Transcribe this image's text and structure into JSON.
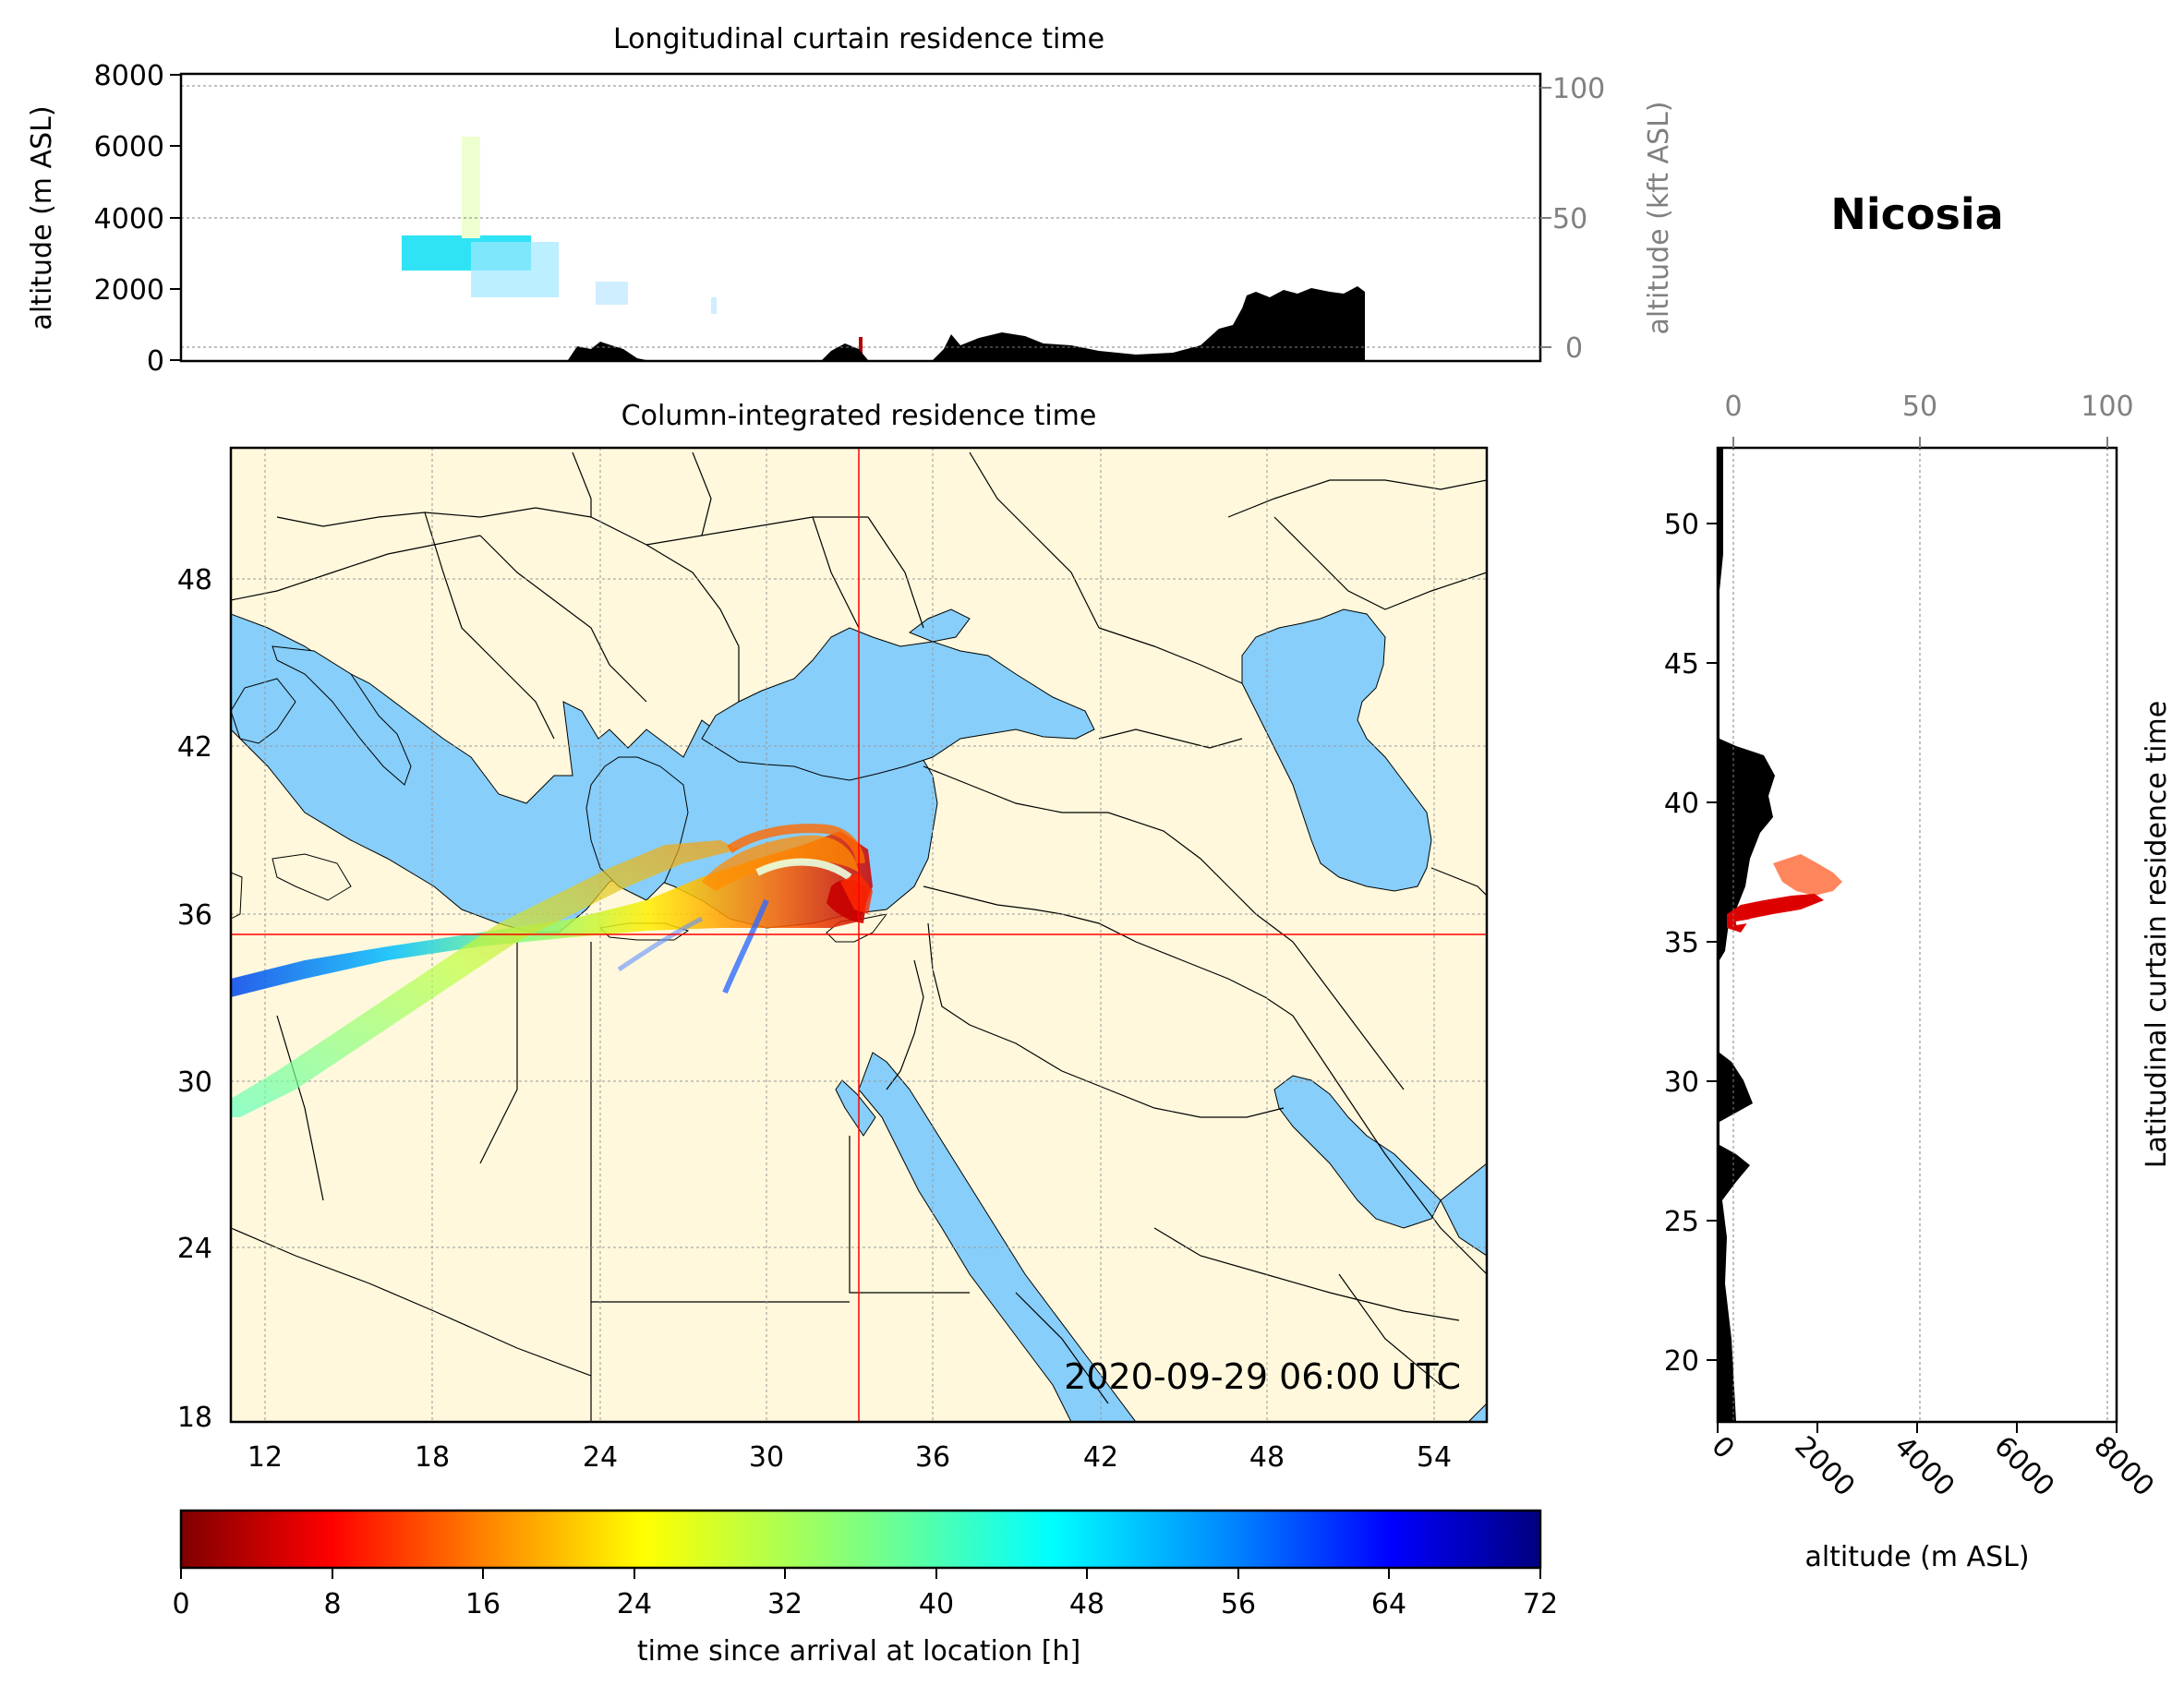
{
  "site_label": "Nicosia",
  "timestamp": "2020-09-29 06:00 UTC",
  "colors": {
    "land": "#fff8dc",
    "water": "#87cefa",
    "terrain": "#000000",
    "crosshair": "#ff0000"
  },
  "map_panel": {
    "title": "Column-integrated residence time",
    "lon_range": [
      11,
      56
    ],
    "lat_range": [
      18,
      53
    ],
    "lon_ticks": [
      "12",
      "18",
      "24",
      "30",
      "36",
      "42",
      "48",
      "54"
    ],
    "lat_ticks": [
      "18",
      "24",
      "30",
      "36",
      "42",
      "48"
    ],
    "site_lon": 33.4,
    "site_lat": 35.2
  },
  "top_panel": {
    "title": "Longitudinal curtain residence time",
    "ylabel": "altitude (m ASL)",
    "ylabel_right": "altitude (kft ASL)",
    "yticks": [
      "0",
      "2000",
      "4000",
      "6000",
      "8000"
    ],
    "yticks_right": [
      "0",
      "50",
      "100"
    ]
  },
  "side_panel": {
    "ylabel": "Latitudinal curtain residence time",
    "xlabel": "altitude (m ASL)",
    "xticks": [
      "0",
      "2000",
      "4000",
      "6000",
      "8000"
    ],
    "xticks_top": [
      "0",
      "50",
      "100"
    ],
    "yticks": [
      "20",
      "25",
      "30",
      "35",
      "40",
      "45",
      "50"
    ]
  },
  "colorbar": {
    "label": "time since arrival at location [h]",
    "ticks": [
      "0",
      "8",
      "16",
      "24",
      "32",
      "40",
      "48",
      "56",
      "64",
      "72"
    ],
    "range": [
      0,
      72
    ],
    "colormap": "jet_r"
  }
}
